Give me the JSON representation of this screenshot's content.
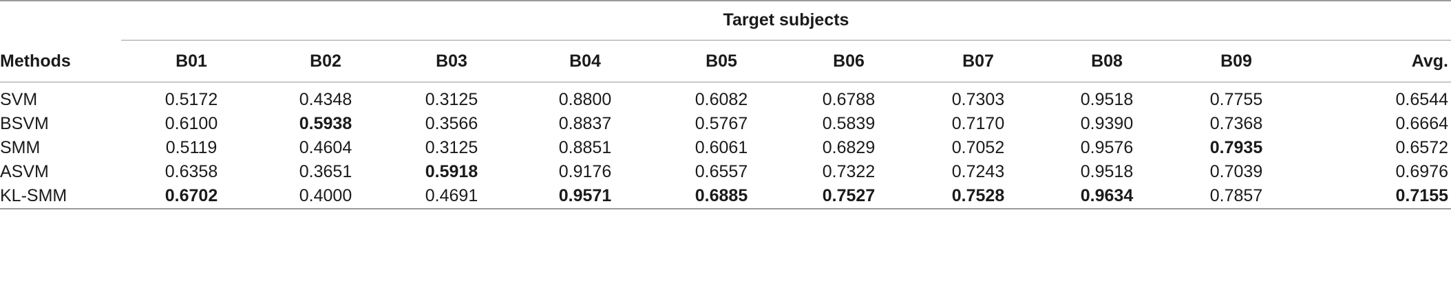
{
  "table": {
    "group_header": "Target subjects",
    "method_header": "Methods",
    "columns": [
      "B01",
      "B02",
      "B03",
      "B04",
      "B05",
      "B06",
      "B07",
      "B08",
      "B09",
      "Avg."
    ],
    "rows": [
      {
        "method": "SVM",
        "values": [
          "0.5172",
          "0.4348",
          "0.3125",
          "0.8800",
          "0.6082",
          "0.6788",
          "0.7303",
          "0.9518",
          "0.7755",
          "0.6544"
        ],
        "bold": [
          false,
          false,
          false,
          false,
          false,
          false,
          false,
          false,
          false,
          false
        ]
      },
      {
        "method": "BSVM",
        "values": [
          "0.6100",
          "0.5938",
          "0.3566",
          "0.8837",
          "0.5767",
          "0.5839",
          "0.7170",
          "0.9390",
          "0.7368",
          "0.6664"
        ],
        "bold": [
          false,
          true,
          false,
          false,
          false,
          false,
          false,
          false,
          false,
          false
        ]
      },
      {
        "method": "SMM",
        "values": [
          "0.5119",
          "0.4604",
          "0.3125",
          "0.8851",
          "0.6061",
          "0.6829",
          "0.7052",
          "0.9576",
          "0.7935",
          "0.6572"
        ],
        "bold": [
          false,
          false,
          false,
          false,
          false,
          false,
          false,
          false,
          true,
          false
        ]
      },
      {
        "method": "ASVM",
        "values": [
          "0.6358",
          "0.3651",
          "0.5918",
          "0.9176",
          "0.6557",
          "0.7322",
          "0.7243",
          "0.9518",
          "0.7039",
          "0.6976"
        ],
        "bold": [
          false,
          false,
          true,
          false,
          false,
          false,
          false,
          false,
          false,
          false
        ]
      },
      {
        "method": "KL-SMM",
        "values": [
          "0.6702",
          "0.4000",
          "0.4691",
          "0.9571",
          "0.6885",
          "0.7527",
          "0.7528",
          "0.9634",
          "0.7857",
          "0.7155"
        ],
        "bold": [
          true,
          false,
          false,
          true,
          true,
          true,
          true,
          true,
          false,
          true
        ]
      }
    ]
  }
}
